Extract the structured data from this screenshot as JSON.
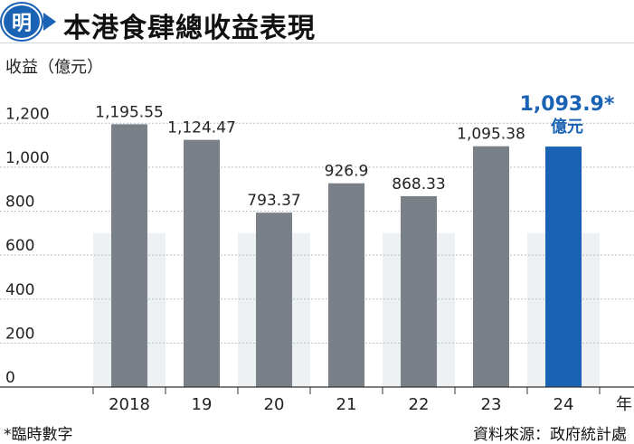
{
  "header": {
    "logo_char": "明",
    "title": "本港食肆總收益表現"
  },
  "chart_data": {
    "type": "bar",
    "ylabel": "收益（億元）",
    "xlabel": "年",
    "categories": [
      "2018",
      "19",
      "20",
      "21",
      "22",
      "23",
      "24"
    ],
    "values": [
      1195.55,
      1124.47,
      793.37,
      926.9,
      868.33,
      1095.38,
      1093.9
    ],
    "value_labels": [
      "1,195.55",
      "1,124.47",
      "793.37",
      "926.9",
      "868.33",
      "1,095.38",
      "1,093.9*"
    ],
    "highlight_index": 6,
    "highlight_unit": "億元",
    "yticks": [
      0,
      200,
      400,
      600,
      800,
      1000,
      1200
    ],
    "ytick_labels": [
      "0",
      "200",
      "400",
      "600",
      "800",
      "1,000",
      "1,200"
    ],
    "ylim": [
      0,
      1300
    ],
    "grid": true,
    "colors": {
      "bar": "#7a8088",
      "highlight": "#1a62b4",
      "band": "#eef1f4",
      "grid": "#b9c0c8"
    }
  },
  "footnote": "*臨時數字",
  "source": "資料來源：政府統計處"
}
